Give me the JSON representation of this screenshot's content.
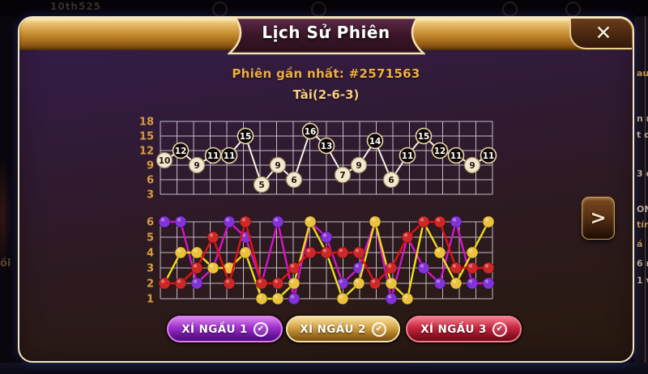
{
  "dialog": {
    "title": "Lịch Sử Phiên",
    "close_label": "✕",
    "session_line": "Phiên gần nhất: #2571563",
    "result_line": "Tài(2-6-3)",
    "next_arrow": ">"
  },
  "dice_buttons": [
    {
      "label": "XÍ NGẦU 1",
      "check": "✔",
      "accent": "#a433cf"
    },
    {
      "label": "XÍ NGẦU 2",
      "check": "✔",
      "accent": "#d8a848"
    },
    {
      "label": "XÍ NGẦU 3",
      "check": "✔",
      "accent": "#cc2c44"
    }
  ],
  "chart_data": [
    {
      "type": "line",
      "title": "sum-history (Tài/Xỉu)",
      "x": [
        1,
        2,
        3,
        4,
        5,
        6,
        7,
        8,
        9,
        10,
        11,
        12,
        13,
        14,
        15,
        16,
        17,
        18,
        19,
        20,
        21
      ],
      "values": [
        10,
        12,
        9,
        11,
        11,
        15,
        5,
        9,
        6,
        16,
        13,
        7,
        9,
        14,
        6,
        11,
        15,
        12,
        11,
        9,
        11
      ],
      "point_styles": [
        "xiu",
        "tai",
        "xiu",
        "tai",
        "tai",
        "tai",
        "xiu",
        "xiu",
        "xiu",
        "tai",
        "tai",
        "xiu",
        "xiu",
        "tai",
        "xiu",
        "tai",
        "tai",
        "tai",
        "tai",
        "xiu",
        "tai"
      ],
      "ytick_labels": [
        3,
        6,
        9,
        12,
        15,
        18
      ],
      "ylim": [
        3,
        18
      ],
      "grid": true,
      "line_color": "#f7f2e6",
      "tai_fill": "#100808",
      "tai_text": "#ffffff",
      "xiu_fill": "#f2e8d0",
      "xiu_text": "#231508",
      "axis_color": "#d89c3e"
    },
    {
      "type": "line",
      "title": "dice-history",
      "x": [
        1,
        2,
        3,
        4,
        5,
        6,
        7,
        8,
        9,
        10,
        11,
        12,
        13,
        14,
        15,
        16,
        17,
        18,
        19,
        20,
        21
      ],
      "series": [
        {
          "name": "XÍ NGẦU 1",
          "dot_color": "#8232d8",
          "line_color": "#d615c8",
          "values": [
            6,
            6,
            2,
            3,
            6,
            5,
            2,
            6,
            1,
            6,
            5,
            2,
            3,
            6,
            1,
            5,
            3,
            2,
            6,
            2,
            2
          ]
        },
        {
          "name": "XÍ NGẦU 2",
          "dot_color": "#ecc23d",
          "line_color": "#f0df1a",
          "values": [
            2,
            4,
            4,
            3,
            3,
            4,
            1,
            1,
            2,
            6,
            4,
            1,
            2,
            6,
            2,
            1,
            6,
            4,
            2,
            4,
            6
          ]
        },
        {
          "name": "XÍ NGẦU 3",
          "dot_color": "#cd2727",
          "line_color": "#e21313",
          "values": [
            2,
            2,
            3,
            5,
            2,
            6,
            2,
            2,
            3,
            4,
            4,
            4,
            4,
            2,
            3,
            5,
            6,
            6,
            3,
            3,
            3
          ]
        }
      ],
      "ytick_labels": [
        1,
        2,
        3,
        4,
        5,
        6
      ],
      "ylim": [
        1,
        6
      ],
      "grid": true,
      "axis_color": "#d89c3e"
    }
  ],
  "background_fragments": {
    "top_left_text": "10th525",
    "left_edge_text": "ối",
    "right_edge": [
      {
        "text": "au",
        "gold": true
      },
      {
        "text": "n r",
        "gold": false
      },
      {
        "text": "t củ",
        "gold": false
      },
      {
        "text": "3 đ",
        "gold": false
      },
      {
        "text": "ON",
        "gold": false
      },
      {
        "text": "tín",
        "gold": true
      },
      {
        "text": "á",
        "gold": true
      },
      {
        "text": "6 n",
        "gold": false
      },
      {
        "text": "1 v",
        "gold": false
      }
    ]
  }
}
